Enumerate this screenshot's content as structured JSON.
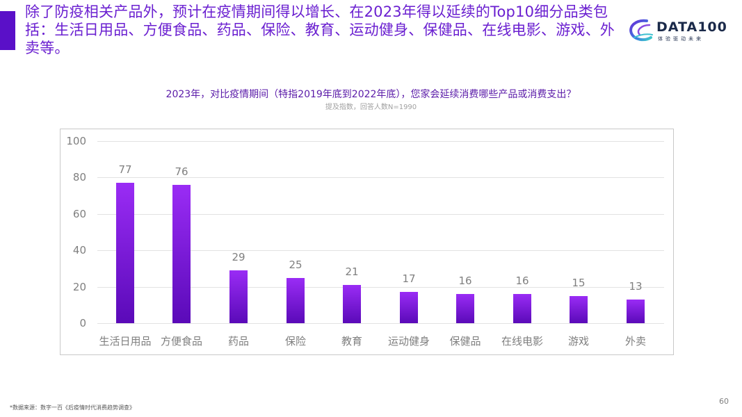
{
  "headline": "除了防疫相关产品外，预计在疫情期间得以增长、在2023年得以延续的Top10细分品类包括：生活日用品、方便食品、药品、保险、教育、运动健身、保健品、在线电影、游戏、外卖等。",
  "logo": {
    "name": "DATA100",
    "tagline": "体验驱动未来",
    "icon": "data100-swirl-logo"
  },
  "chart": {
    "title": "2023年，对比疫情期间（特指2019年底到2022年底），您家会延续消费哪些产品或消费支出？",
    "subtitle": "提及指数，回答人数N=1990",
    "yticks": [
      "100",
      "80",
      "60",
      "40",
      "20",
      "0"
    ],
    "bar_color_top": "#9a2cf5",
    "bar_color_bottom": "#5a0ab8"
  },
  "chart_data": {
    "type": "bar",
    "title": "2023年，对比疫情期间（特指2019年底到2022年底），您家会延续消费哪些产品或消费支出？",
    "subtitle": "提及指数，回答人数N=1990",
    "categories": [
      "生活日用品",
      "方便食品",
      "药品",
      "保险",
      "教育",
      "运动健身",
      "保健品",
      "在线电影",
      "游戏",
      "外卖"
    ],
    "values": [
      77,
      76,
      29,
      25,
      21,
      17,
      16,
      16,
      15,
      13
    ],
    "xlabel": "",
    "ylabel": "",
    "ylim": [
      0,
      100
    ],
    "yticks": [
      0,
      20,
      40,
      60,
      80,
      100
    ],
    "grid": true,
    "legend": null,
    "data_labels": true
  },
  "footnote": "*数据来源：数字一百《后疫情时代消费趋势调查》",
  "page_number": "60"
}
